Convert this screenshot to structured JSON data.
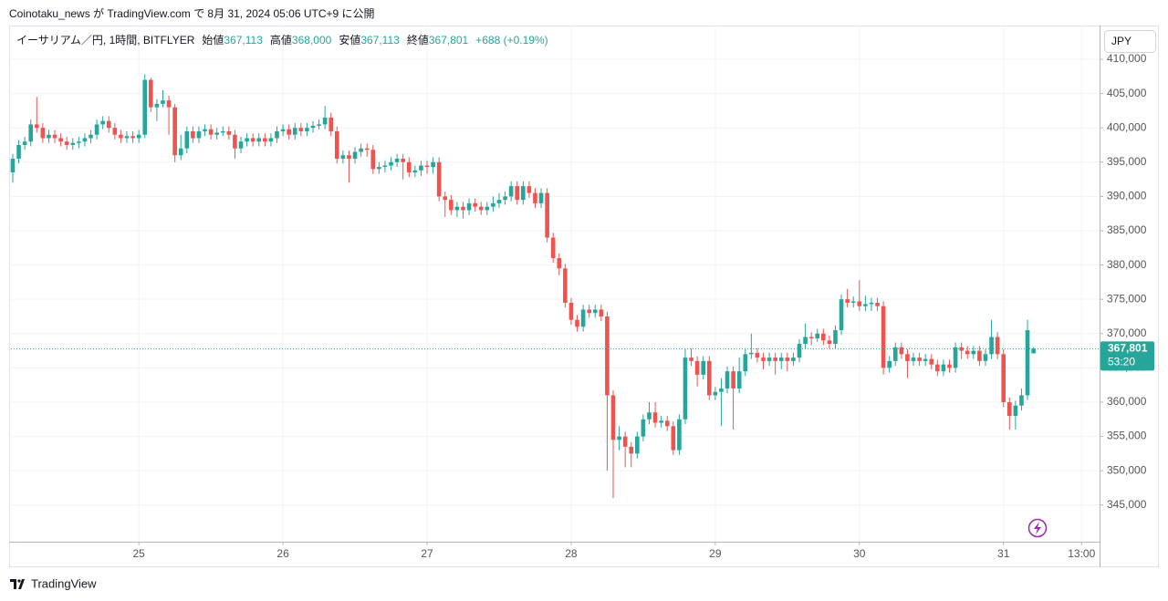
{
  "header": "Coinotaku_news が TradingView.com で 8月 31, 2024 05:06 UTC+9 に公開",
  "footer": "TradingView",
  "chart_data": {
    "type": "candlestick",
    "currency": "JPY",
    "legend": {
      "symbol": "イーサリアム／円, 1時間, BITFLYER",
      "items": [
        {
          "label": "始値",
          "value": "367,113"
        },
        {
          "label": "高値",
          "value": "368,000"
        },
        {
          "label": "安値",
          "value": "367,113"
        },
        {
          "label": "終値",
          "value": "367,801"
        }
      ],
      "change": "+688 (+0.19%)"
    },
    "last_price_label": "367,801",
    "countdown": "53:20",
    "up_color": "#26a69a",
    "down_color": "#ef5350",
    "grid": true,
    "ylim": [
      339650,
      414920
    ],
    "yticks": [
      {
        "value": 345000,
        "label": "345,000"
      },
      {
        "value": 350000,
        "label": "350,000"
      },
      {
        "value": 355000,
        "label": "355,000"
      },
      {
        "value": 360000,
        "label": "360,000"
      },
      {
        "value": 365000,
        "label": "365,000"
      },
      {
        "value": 370000,
        "label": "370,000"
      },
      {
        "value": 375000,
        "label": "375,000"
      },
      {
        "value": 380000,
        "label": "380,000"
      },
      {
        "value": 385000,
        "label": "385,000"
      },
      {
        "value": 390000,
        "label": "390,000"
      },
      {
        "value": 395000,
        "label": "395,000"
      },
      {
        "value": 400000,
        "label": "400,000"
      },
      {
        "value": 405000,
        "label": "405,000"
      },
      {
        "value": 410000,
        "label": "410,000"
      }
    ],
    "xlim": [
      -0.3,
      181
    ],
    "xticks": [
      {
        "value": 21,
        "label": "25"
      },
      {
        "value": 45,
        "label": "26"
      },
      {
        "value": 69,
        "label": "27"
      },
      {
        "value": 93,
        "label": "28"
      },
      {
        "value": 117,
        "label": "29"
      },
      {
        "value": 141,
        "label": "30"
      },
      {
        "value": 165,
        "label": "31"
      },
      {
        "value": 178,
        "label": "13:00"
      }
    ],
    "open": [
      393500,
      395500,
      397500,
      398000,
      400500,
      400000,
      398500,
      399000,
      398500,
      398000,
      397500,
      397800,
      398000,
      398500,
      399000,
      400500,
      401000,
      400000,
      399000,
      398500,
      398800,
      398500,
      399000,
      407000,
      403000,
      403500,
      404000,
      403000,
      396000,
      397000,
      399500,
      398500,
      399500,
      399800,
      399000,
      399300,
      399500,
      399000,
      397000,
      398000,
      398500,
      398000,
      398500,
      398000,
      398500,
      399500,
      399800,
      399000,
      400000,
      399500,
      400000,
      400300,
      400500,
      401500,
      399500,
      395500,
      396000,
      395500,
      396500,
      397000,
      396800,
      394000,
      394300,
      394500,
      395000,
      395500,
      395000,
      393500,
      393800,
      394500,
      394300,
      395000,
      390000,
      389500,
      388000,
      388500,
      388000,
      389000,
      388500,
      388000,
      388500,
      389000,
      389500,
      390000,
      391500,
      389500,
      391500,
      390500,
      389000,
      390500,
      384000,
      381000,
      379500,
      374500,
      372000,
      371000,
      373500,
      373000,
      373500,
      372500,
      361000,
      354500,
      355000,
      353500,
      352500,
      355000,
      357500,
      358500,
      357000,
      357300,
      356500,
      353000,
      357500,
      366500,
      366000,
      364000,
      366000,
      361000,
      361500,
      362000,
      364500,
      362000,
      364500,
      367000,
      367200,
      366500,
      366000,
      366500,
      366000,
      366500,
      366000,
      366500,
      368500,
      369500,
      369300,
      370000,
      369000,
      368500,
      370500,
      375000,
      374500,
      374700,
      374000,
      374300,
      374500,
      374000,
      365000,
      366000,
      368000,
      367000,
      366000,
      366500,
      366000,
      366300,
      365500,
      364500,
      365500,
      365000,
      368000,
      367500,
      367000,
      367500,
      366000,
      367000,
      369500,
      367000,
      360000,
      358000,
      359500,
      361000,
      367113
    ],
    "high": [
      396200,
      398200,
      398700,
      401200,
      404500,
      400700,
      399700,
      399700,
      399200,
      398700,
      398500,
      398700,
      399200,
      399700,
      401200,
      401700,
      401700,
      400700,
      399700,
      399500,
      399500,
      399700,
      407800,
      407300,
      404200,
      405500,
      404700,
      403500,
      399000,
      400200,
      400200,
      400200,
      400500,
      400500,
      400000,
      400200,
      400200,
      399700,
      398700,
      399200,
      399200,
      399200,
      399200,
      399200,
      400200,
      400500,
      400500,
      400700,
      400700,
      400700,
      401000,
      401200,
      403200,
      402200,
      400200,
      396700,
      396700,
      397200,
      397700,
      397700,
      397500,
      395000,
      395200,
      395700,
      396200,
      396200,
      395700,
      394500,
      395200,
      395200,
      395700,
      395700,
      390700,
      390200,
      389200,
      389200,
      389700,
      389700,
      389200,
      389200,
      390000,
      390500,
      390700,
      392200,
      392200,
      392200,
      392200,
      391200,
      391200,
      391200,
      384700,
      381700,
      380200,
      375200,
      372700,
      374200,
      374200,
      374200,
      374200,
      373200,
      361700,
      356500,
      355700,
      354200,
      355700,
      358200,
      360000,
      360000,
      358000,
      358000,
      357200,
      358200,
      367800,
      367800,
      366700,
      366700,
      366700,
      362200,
      363500,
      365200,
      365200,
      366500,
      367700,
      370000,
      367900,
      367200,
      367200,
      367200,
      367200,
      367200,
      367200,
      369200,
      371500,
      370200,
      370700,
      370700,
      369700,
      371200,
      375700,
      376500,
      375400,
      377800,
      375500,
      375200,
      375200,
      374700,
      366700,
      368700,
      368700,
      367700,
      367200,
      367200,
      367000,
      367000,
      366200,
      366200,
      366200,
      368700,
      368700,
      368200,
      368200,
      368200,
      367700,
      372000,
      370200,
      367700,
      360700,
      360200,
      362000,
      372000,
      368000
    ],
    "low": [
      392000,
      394800,
      396800,
      397300,
      399300,
      397800,
      397800,
      397800,
      397300,
      396800,
      396800,
      397000,
      397300,
      397800,
      398300,
      399800,
      399300,
      398300,
      397800,
      397800,
      397800,
      397800,
      398500,
      402300,
      401000,
      403000,
      399000,
      395000,
      395300,
      396300,
      397800,
      397800,
      398800,
      398300,
      398300,
      398800,
      398300,
      395500,
      396300,
      397300,
      397300,
      397300,
      397300,
      397300,
      397800,
      398800,
      398300,
      398300,
      398800,
      398800,
      399300,
      399800,
      399800,
      398800,
      394800,
      394800,
      392000,
      394800,
      395800,
      395800,
      393300,
      393300,
      393500,
      393800,
      394300,
      392500,
      392800,
      392800,
      393000,
      393300,
      393300,
      389300,
      387000,
      387300,
      387000,
      386800,
      387300,
      387800,
      387300,
      387300,
      387800,
      388300,
      388800,
      389300,
      388800,
      388800,
      389800,
      388300,
      388300,
      383300,
      380300,
      378500,
      373800,
      371300,
      370300,
      370300,
      372300,
      372300,
      371800,
      350000,
      346000,
      353000,
      350500,
      350500,
      351800,
      354300,
      356800,
      356300,
      356300,
      355800,
      352300,
      352300,
      356800,
      365300,
      362300,
      363300,
      360300,
      360300,
      356500,
      361300,
      356000,
      361300,
      363800,
      366300,
      365800,
      364800,
      365300,
      364000,
      364800,
      364500,
      365300,
      365800,
      367800,
      368300,
      368800,
      368300,
      367800,
      367800,
      369800,
      373800,
      373800,
      373300,
      373300,
      373300,
      373300,
      364000,
      364300,
      365300,
      366300,
      363500,
      365300,
      365300,
      365300,
      364800,
      363800,
      363800,
      364300,
      364300,
      366300,
      366300,
      366300,
      365300,
      365300,
      366300,
      366300,
      359300,
      356000,
      356000,
      358800,
      360300,
      367113
    ],
    "close": [
      395500,
      397500,
      398000,
      400500,
      400000,
      398500,
      399000,
      398500,
      398000,
      397500,
      397800,
      398000,
      398500,
      399000,
      400500,
      401000,
      400000,
      399000,
      398500,
      398800,
      398500,
      399000,
      407000,
      403000,
      403500,
      404000,
      403000,
      396000,
      397000,
      399500,
      398500,
      399500,
      399800,
      399000,
      399300,
      399500,
      399000,
      397000,
      398000,
      398500,
      398000,
      398500,
      398000,
      398500,
      399500,
      399800,
      399000,
      400000,
      399500,
      400000,
      400300,
      400500,
      401500,
      399500,
      395500,
      396000,
      395500,
      396500,
      397000,
      396800,
      394000,
      394300,
      394500,
      395000,
      395500,
      395000,
      393500,
      393800,
      394500,
      394300,
      395000,
      390000,
      389500,
      388000,
      388500,
      388000,
      389000,
      388500,
      388000,
      388500,
      389000,
      389500,
      390000,
      391500,
      389500,
      391500,
      390500,
      389000,
      390500,
      384000,
      381000,
      379500,
      374500,
      372000,
      371000,
      373500,
      373000,
      373500,
      372500,
      361000,
      354500,
      355000,
      353500,
      352500,
      355000,
      357500,
      358500,
      357000,
      357300,
      356500,
      353000,
      357500,
      366500,
      366000,
      364000,
      366000,
      361000,
      361500,
      362000,
      364500,
      362000,
      364500,
      367000,
      367200,
      366500,
      366000,
      366500,
      366000,
      366500,
      366000,
      366500,
      368500,
      369500,
      369300,
      370000,
      369000,
      368500,
      370500,
      375000,
      374500,
      374700,
      374000,
      374300,
      374500,
      374000,
      365000,
      366000,
      368000,
      367000,
      366000,
      366500,
      366000,
      366300,
      365500,
      364500,
      365500,
      365000,
      368000,
      367500,
      367000,
      367500,
      366000,
      367000,
      369500,
      367000,
      360000,
      358000,
      359500,
      361000,
      370500,
      367801
    ]
  }
}
